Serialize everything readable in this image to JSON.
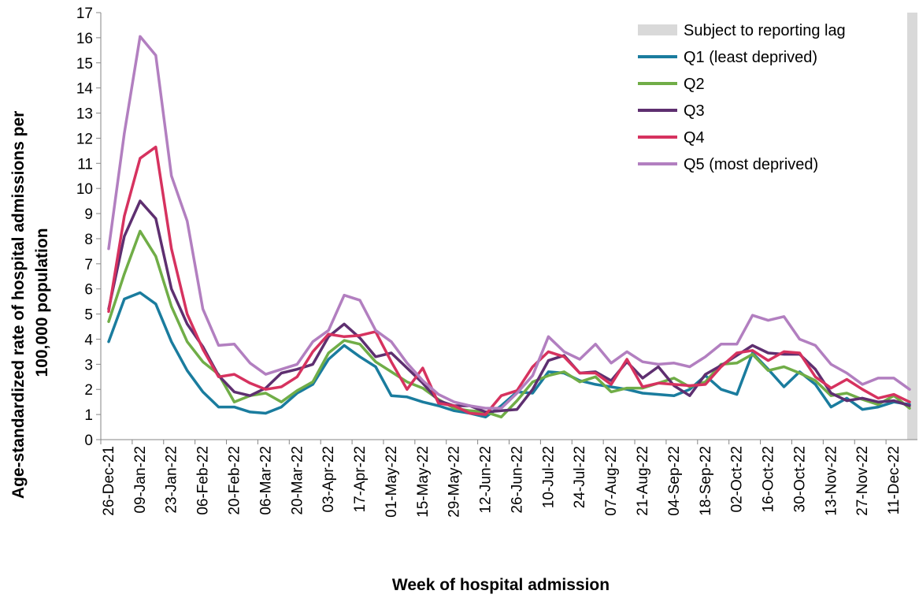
{
  "chart_data": {
    "type": "line",
    "xlabel": "Week of hospital admission",
    "ylabel": "Age-standardized rate of hospital admissions per 100,000 population",
    "ylim": [
      0,
      17
    ],
    "yticks": [
      0,
      1,
      2,
      3,
      4,
      5,
      6,
      7,
      8,
      9,
      10,
      11,
      12,
      13,
      14,
      15,
      16,
      17
    ],
    "grid": false,
    "legend_position": "top-right",
    "lag_label": "Subject to reporting lag",
    "lag_color": "#d9d9d9",
    "x": [
      "26-Dec-21",
      "02-Jan-22",
      "09-Jan-22",
      "16-Jan-22",
      "23-Jan-22",
      "30-Jan-22",
      "06-Feb-22",
      "13-Feb-22",
      "20-Feb-22",
      "27-Feb-22",
      "06-Mar-22",
      "13-Mar-22",
      "20-Mar-22",
      "27-Mar-22",
      "03-Apr-22",
      "10-Apr-22",
      "17-Apr-22",
      "24-Apr-22",
      "01-May-22",
      "08-May-22",
      "15-May-22",
      "22-May-22",
      "29-May-22",
      "05-Jun-22",
      "12-Jun-22",
      "19-Jun-22",
      "26-Jun-22",
      "03-Jul-22",
      "10-Jul-22",
      "17-Jul-22",
      "24-Jul-22",
      "31-Jul-22",
      "07-Aug-22",
      "14-Aug-22",
      "21-Aug-22",
      "28-Aug-22",
      "04-Sep-22",
      "11-Sep-22",
      "18-Sep-22",
      "25-Sep-22",
      "02-Oct-22",
      "09-Oct-22",
      "16-Oct-22",
      "23-Oct-22",
      "30-Oct-22",
      "06-Nov-22",
      "13-Nov-22",
      "20-Nov-22",
      "27-Nov-22",
      "04-Dec-22",
      "11-Dec-22",
      "18-Dec-22"
    ],
    "tick_labels": [
      "26-Dec-21",
      "09-Jan-22",
      "23-Jan-22",
      "06-Feb-22",
      "20-Feb-22",
      "06-Mar-22",
      "20-Mar-22",
      "03-Apr-22",
      "17-Apr-22",
      "01-May-22",
      "15-May-22",
      "29-May-22",
      "12-Jun-22",
      "26-Jun-22",
      "10-Jul-22",
      "24-Jul-22",
      "07-Aug-22",
      "21-Aug-22",
      "04-Sep-22",
      "18-Sep-22",
      "02-Oct-22",
      "16-Oct-22",
      "30-Oct-22",
      "13-Nov-22",
      "27-Nov-22",
      "11-Dec-22"
    ],
    "series": [
      {
        "name": "Q1 (least deprived)",
        "color": "#1a7c9e",
        "values": [
          3.9,
          5.6,
          5.85,
          5.4,
          3.9,
          2.75,
          1.9,
          1.3,
          1.3,
          1.1,
          1.05,
          1.3,
          1.85,
          2.2,
          3.2,
          3.75,
          3.3,
          2.9,
          1.75,
          1.7,
          1.5,
          1.35,
          1.15,
          1.05,
          0.9,
          1.35,
          1.9,
          1.85,
          2.7,
          2.65,
          2.35,
          2.2,
          2.1,
          2.0,
          1.85,
          1.8,
          1.75,
          2.0,
          2.55,
          2.0,
          1.8,
          3.45,
          2.8,
          2.1,
          2.7,
          2.2,
          1.3,
          1.65,
          1.2,
          1.3,
          1.5,
          1.4
        ]
      },
      {
        "name": "Q2",
        "color": "#70ad47",
        "values": [
          4.7,
          6.6,
          8.3,
          7.3,
          5.3,
          3.9,
          3.1,
          2.6,
          1.5,
          1.75,
          1.85,
          1.5,
          1.95,
          2.3,
          3.45,
          3.95,
          3.8,
          3.1,
          2.7,
          2.3,
          2.05,
          1.6,
          1.25,
          1.15,
          1.1,
          0.9,
          1.55,
          2.3,
          2.55,
          2.7,
          2.3,
          2.5,
          1.9,
          2.05,
          2.05,
          2.25,
          2.45,
          2.1,
          2.3,
          3.0,
          3.05,
          3.4,
          2.75,
          2.9,
          2.65,
          2.35,
          1.75,
          1.85,
          1.6,
          1.4,
          1.75,
          1.25
        ]
      },
      {
        "name": "Q3",
        "color": "#5e2f70",
        "values": [
          5.2,
          8.1,
          9.5,
          8.8,
          6.0,
          4.6,
          3.7,
          2.55,
          1.9,
          1.75,
          2.05,
          2.65,
          2.8,
          3.0,
          4.1,
          4.6,
          4.05,
          3.3,
          3.45,
          2.85,
          2.25,
          1.55,
          1.35,
          1.35,
          1.1,
          1.15,
          1.2,
          2.0,
          3.15,
          3.35,
          2.65,
          2.7,
          2.35,
          3.1,
          2.45,
          2.9,
          2.15,
          1.75,
          2.6,
          2.95,
          3.35,
          3.75,
          3.45,
          3.4,
          3.4,
          2.8,
          1.85,
          1.55,
          1.65,
          1.5,
          1.55,
          1.35
        ]
      },
      {
        "name": "Q4",
        "color": "#d6325f",
        "values": [
          5.1,
          8.9,
          11.2,
          11.65,
          7.6,
          5.0,
          3.6,
          2.5,
          2.6,
          2.25,
          2.0,
          2.1,
          2.5,
          3.5,
          4.2,
          4.1,
          4.15,
          4.3,
          3.1,
          2.0,
          2.85,
          1.45,
          1.35,
          1.05,
          1.0,
          1.75,
          1.95,
          2.9,
          3.5,
          3.3,
          2.65,
          2.65,
          2.2,
          3.2,
          2.1,
          2.25,
          2.2,
          2.15,
          2.2,
          2.9,
          3.45,
          3.55,
          3.15,
          3.5,
          3.45,
          2.5,
          2.05,
          2.4,
          2.0,
          1.65,
          1.8,
          1.5
        ]
      },
      {
        "name": "Q5 (most deprived)",
        "color": "#b27fc0",
        "values": [
          7.6,
          12.2,
          16.05,
          15.3,
          10.5,
          8.7,
          5.2,
          3.75,
          3.8,
          3.05,
          2.6,
          2.8,
          3.0,
          3.9,
          4.35,
          5.75,
          5.55,
          4.35,
          3.9,
          3.05,
          2.35,
          1.8,
          1.5,
          1.35,
          1.25,
          1.25,
          1.85,
          2.55,
          4.1,
          3.5,
          3.2,
          3.8,
          3.05,
          3.5,
          3.1,
          3.0,
          3.05,
          2.9,
          3.3,
          3.8,
          3.8,
          4.95,
          4.75,
          4.9,
          4.0,
          3.75,
          3.0,
          2.65,
          2.2,
          2.45,
          2.45,
          2.0
        ]
      }
    ]
  }
}
